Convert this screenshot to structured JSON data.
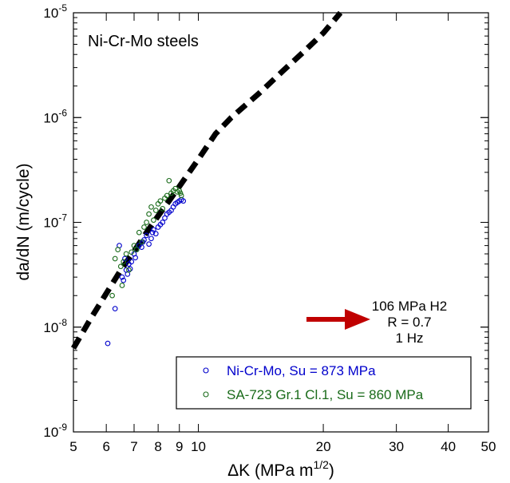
{
  "chart_data": {
    "type": "scatter",
    "title": "Ni-Cr-Mo steels",
    "xlabel_main": "ΔK (MPa m",
    "xlabel_sup": "1/2",
    "xlabel_end": ")",
    "ylabel": "da/dN (m/cycle)",
    "x_scale": "log",
    "y_scale": "log",
    "xlim": [
      5,
      50
    ],
    "ylim": [
      1e-09,
      1e-05
    ],
    "x_tick_values": [
      5,
      6,
      7,
      8,
      9,
      10,
      20,
      30,
      40,
      50
    ],
    "x_tick_labels": [
      "5",
      "6",
      "7",
      "8",
      "9",
      "10",
      "20",
      "30",
      "40",
      "50"
    ],
    "y_tick_values": [
      1e-09,
      1e-08,
      1e-07,
      1e-06,
      1e-05
    ],
    "y_tick_base": "10",
    "y_tick_exponents": [
      "-9",
      "-8",
      "-7",
      "-6",
      "-5"
    ],
    "grid": false,
    "legend_position": "bottom-right",
    "annotation": {
      "lines": [
        "106 MPa H2",
        "R = 0.7",
        "1 Hz"
      ],
      "arrow_color": "#c00000",
      "position": "right"
    },
    "curve": {
      "style": "dashed",
      "color": "#000000",
      "x": [
        5.0,
        5.5,
        6.0,
        6.5,
        7.0,
        7.5,
        8.0,
        8.5,
        9.0,
        10.0,
        11.0,
        12.0,
        14.0,
        16.0,
        18.0,
        20.0,
        22.0
      ],
      "y": [
        6.3e-09,
        1.2e-08,
        2.1e-08,
        3.5e-08,
        5.3e-08,
        8e-08,
        1.15e-07,
        1.6e-07,
        2.2e-07,
        4e-07,
        7e-07,
        1e-06,
        1.7e-06,
        2.8e-06,
        4.3e-06,
        6.4e-06,
        1e-05
      ]
    },
    "series": [
      {
        "name": "Ni-Cr-Mo, Su = 873 MPa",
        "color": "#0000cc",
        "marker": "open-circle",
        "x": [
          6.05,
          6.3,
          6.45,
          6.55,
          6.6,
          6.65,
          6.7,
          6.75,
          6.8,
          6.85,
          6.9,
          7.0,
          7.05,
          7.1,
          7.2,
          7.3,
          7.35,
          7.4,
          7.5,
          7.6,
          7.7,
          7.75,
          7.8,
          7.9,
          8.0,
          8.1,
          8.2,
          8.3,
          8.4,
          8.5,
          8.6,
          8.7,
          8.8,
          8.9,
          9.0,
          9.1,
          9.2
        ],
        "y": [
          7e-09,
          1.5e-08,
          6e-08,
          3e-08,
          2.8e-08,
          4.5e-08,
          3.5e-08,
          3.2e-08,
          4e-08,
          3.6e-08,
          4.2e-08,
          5e-08,
          4.6e-08,
          5.5e-08,
          6e-08,
          5.8e-08,
          6.5e-08,
          6.8e-08,
          7.5e-08,
          6.2e-08,
          7e-08,
          8e-08,
          8.5e-08,
          7.8e-08,
          9e-08,
          9.5e-08,
          1e-07,
          1.1e-07,
          1.2e-07,
          1.25e-07,
          1.3e-07,
          1.4e-07,
          1.5e-07,
          1.55e-07,
          1.6e-07,
          1.65e-07,
          1.6e-07
        ]
      },
      {
        "name": "SA-723 Gr.1 Cl.1, Su = 860 MPa",
        "color": "#1a6b1a",
        "marker": "open-circle",
        "x": [
          6.2,
          6.3,
          6.4,
          6.5,
          6.55,
          6.6,
          6.7,
          6.8,
          6.9,
          7.0,
          7.1,
          7.2,
          7.3,
          7.4,
          7.5,
          7.6,
          7.7,
          7.8,
          7.9,
          8.0,
          8.1,
          8.2,
          8.3,
          8.4,
          8.5,
          8.6,
          8.7,
          8.8,
          8.9,
          9.0,
          9.05,
          9.1
        ],
        "y": [
          2e-08,
          4.5e-08,
          5.5e-08,
          3.8e-08,
          2.5e-08,
          4.2e-08,
          5e-08,
          3.5e-08,
          5.2e-08,
          6e-08,
          5.5e-08,
          8e-08,
          6.5e-08,
          9e-08,
          1e-07,
          1.2e-07,
          1.4e-07,
          1.05e-07,
          1.3e-07,
          1.5e-07,
          1.6e-07,
          1.35e-07,
          1.7e-07,
          1.8e-07,
          2.5e-07,
          1.9e-07,
          2e-07,
          2.1e-07,
          1.95e-07,
          2e-07,
          1.9e-07,
          1.8e-07
        ]
      }
    ]
  }
}
